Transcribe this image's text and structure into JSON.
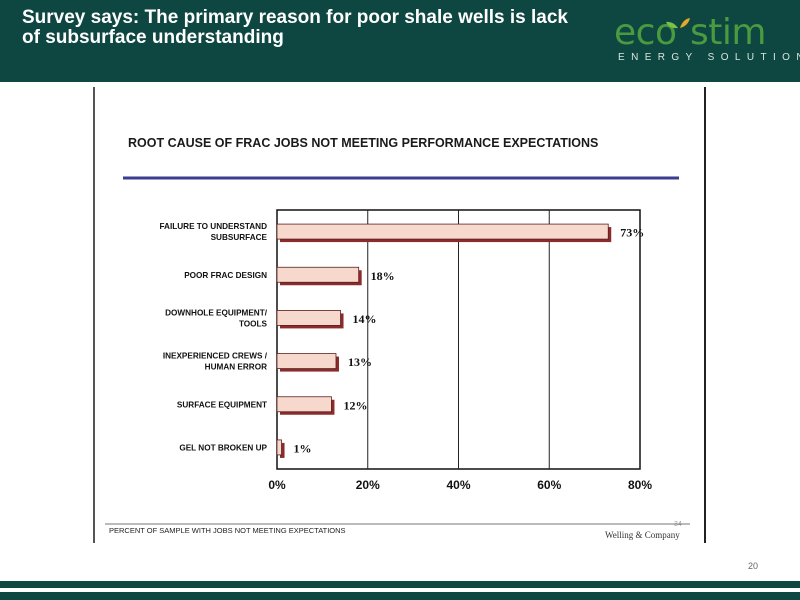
{
  "slide": {
    "title": "Survey says: The primary reason for poor shale wells is lack of subsurface understanding",
    "page_number": "20"
  },
  "logo": {
    "word": "ecostim",
    "tagline": "ENERGY SOLUTIONS"
  },
  "colors": {
    "header_bg": "#0e4642",
    "bar_fill": "#f7d8cc",
    "bar_shadow": "#8b2b2b",
    "rule": "#3b3d8f",
    "logo_green": "#4a9a3f"
  },
  "chart_data": {
    "type": "bar",
    "orientation": "horizontal",
    "title": "ROOT CAUSE OF FRAC JOBS NOT MEETING PERFORMANCE EXPECTATIONS",
    "categories": [
      [
        "FAILURE TO UNDERSTAND",
        "SUBSURFACE"
      ],
      [
        "POOR FRAC DESIGN"
      ],
      [
        "DOWNHOLE EQUIPMENT/",
        "TOOLS"
      ],
      [
        "INEXPERIENCED CREWS /",
        "HUMAN ERROR"
      ],
      [
        "SURFACE EQUIPMENT"
      ],
      [
        "GEL NOT BROKEN UP"
      ]
    ],
    "values": [
      73,
      18,
      14,
      13,
      12,
      1
    ],
    "value_labels": [
      "73%",
      "18%",
      "14%",
      "13%",
      "12%",
      "1%"
    ],
    "xlim": [
      0,
      80
    ],
    "ticks": [
      0,
      20,
      40,
      60,
      80
    ],
    "tick_labels": [
      "0%",
      "20%",
      "40%",
      "60%",
      "80%"
    ],
    "grid": "vertical",
    "footnote": "PERCENT OF SAMPLE WITH JOBS NOT MEETING EXPECTATIONS",
    "source": "Welling & Company",
    "slide_ref": "34"
  }
}
